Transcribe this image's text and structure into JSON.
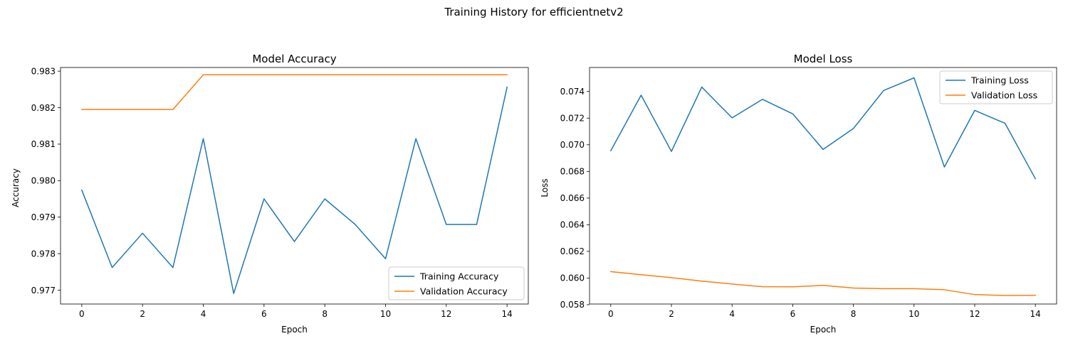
{
  "figure": {
    "suptitle": "Training History for efficientnetv2"
  },
  "colors": {
    "training": "#1f77b4",
    "validation": "#ff7f0e",
    "axis": "#000000",
    "legend_border": "#cccccc"
  },
  "chart_data": [
    {
      "type": "line",
      "title": "Model Accuracy",
      "xlabel": "Epoch",
      "ylabel": "Accuracy",
      "x": [
        0,
        1,
        2,
        3,
        4,
        5,
        6,
        7,
        8,
        9,
        10,
        11,
        12,
        13,
        14
      ],
      "xlim": [
        -0.7,
        14.7
      ],
      "ylim": [
        0.97662,
        0.9831
      ],
      "xticks": [
        0,
        2,
        4,
        6,
        8,
        10,
        12,
        14
      ],
      "yticks": [
        0.977,
        0.978,
        0.979,
        0.98,
        0.981,
        0.982,
        0.983
      ],
      "ytick_labels": [
        "0.977",
        "0.978",
        "0.979",
        "0.980",
        "0.981",
        "0.982",
        "0.983"
      ],
      "grid": false,
      "legend_position": "lower-right",
      "series": [
        {
          "name": "Training Accuracy",
          "color": "#1f77b4",
          "values": [
            0.97974,
            0.97762,
            0.97856,
            0.97762,
            0.98115,
            0.97691,
            0.9795,
            0.97833,
            0.9795,
            0.9788,
            0.97786,
            0.98115,
            0.9788,
            0.9788,
            0.98256
          ]
        },
        {
          "name": "Validation Accuracy",
          "color": "#ff7f0e",
          "values": [
            0.98195,
            0.98195,
            0.98195,
            0.98195,
            0.9829,
            0.9829,
            0.9829,
            0.9829,
            0.9829,
            0.9829,
            0.9829,
            0.9829,
            0.9829,
            0.9829,
            0.9829
          ]
        }
      ]
    },
    {
      "type": "line",
      "title": "Model Loss",
      "xlabel": "Epoch",
      "ylabel": "Loss",
      "x": [
        0,
        1,
        2,
        3,
        4,
        5,
        6,
        7,
        8,
        9,
        10,
        11,
        12,
        13,
        14
      ],
      "xlim": [
        -0.7,
        14.7
      ],
      "ylim": [
        0.05805,
        0.0758
      ],
      "xticks": [
        0,
        2,
        4,
        6,
        8,
        10,
        12,
        14
      ],
      "yticks": [
        0.058,
        0.06,
        0.062,
        0.064,
        0.066,
        0.068,
        0.07,
        0.072,
        0.074
      ],
      "ytick_labels": [
        "0.058",
        "0.060",
        "0.062",
        "0.064",
        "0.066",
        "0.068",
        "0.070",
        "0.072",
        "0.074"
      ],
      "grid": false,
      "legend_position": "upper-right",
      "series": [
        {
          "name": "Training Loss",
          "color": "#1f77b4",
          "values": [
            0.06955,
            0.07372,
            0.0695,
            0.07433,
            0.07202,
            0.07341,
            0.07232,
            0.06965,
            0.07122,
            0.07408,
            0.07502,
            0.06833,
            0.07258,
            0.07161,
            0.06745
          ]
        },
        {
          "name": "Validation Loss",
          "color": "#ff7f0e",
          "values": [
            0.06048,
            0.06025,
            0.06003,
            0.05977,
            0.05955,
            0.05935,
            0.05934,
            0.05945,
            0.05925,
            0.0592,
            0.0592,
            0.05912,
            0.05876,
            0.05869,
            0.0587
          ]
        }
      ]
    }
  ]
}
